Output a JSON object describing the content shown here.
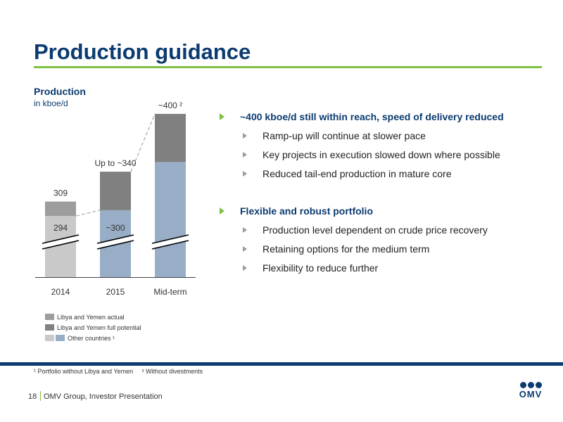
{
  "slide": {
    "title": "Production guidance",
    "page_number": "18",
    "footer_text": "OMV Group, Investor Presentation",
    "logo_text": "OMV",
    "colors": {
      "title": "#0b3b70",
      "accent": "#7ec242",
      "bar_2014": "#c9c9c9",
      "bar_blue": "#98aec6",
      "libya_actual": "#9d9d9d",
      "libya_potential": "#808080"
    }
  },
  "chart_header": {
    "title": "Production",
    "unit": "in kboe/d"
  },
  "chart_data": {
    "type": "bar",
    "title": "Production",
    "ylabel": "in kboe/d",
    "categories": [
      "2014",
      "2015",
      "Mid-term"
    ],
    "series": [
      {
        "name": "Other countries ¹",
        "values": [
          294,
          300,
          350
        ]
      },
      {
        "name": "Libya and Yemen actual",
        "values": [
          15,
          null,
          null
        ]
      },
      {
        "name": "Libya and Yemen full potential",
        "values": [
          null,
          40,
          50
        ]
      }
    ],
    "bar_labels_top": [
      "309",
      "Up to ~340",
      "~400 ²"
    ],
    "bar_labels_inside": [
      "294",
      "~300",
      ""
    ],
    "axis_break": true,
    "legend": [
      "Libya and Yemen actual",
      "Libya and Yemen full potential",
      "Other countries ¹"
    ],
    "legend_position": "bottom-left"
  },
  "bullets": [
    {
      "text": "~400 kboe/d still within reach, speed of delivery reduced",
      "sub": [
        "Ramp-up will continue at slower pace",
        "Key projects in execution slowed down where possible",
        "Reduced tail-end production in mature core"
      ]
    },
    {
      "text": "Flexible and robust portfolio",
      "sub": [
        "Production level dependent on crude price recovery",
        "Retaining options for the medium term",
        "Flexibility to reduce further"
      ]
    }
  ],
  "footnotes": [
    "¹ Portfolio without Libya and Yemen",
    "² Without divestments"
  ]
}
